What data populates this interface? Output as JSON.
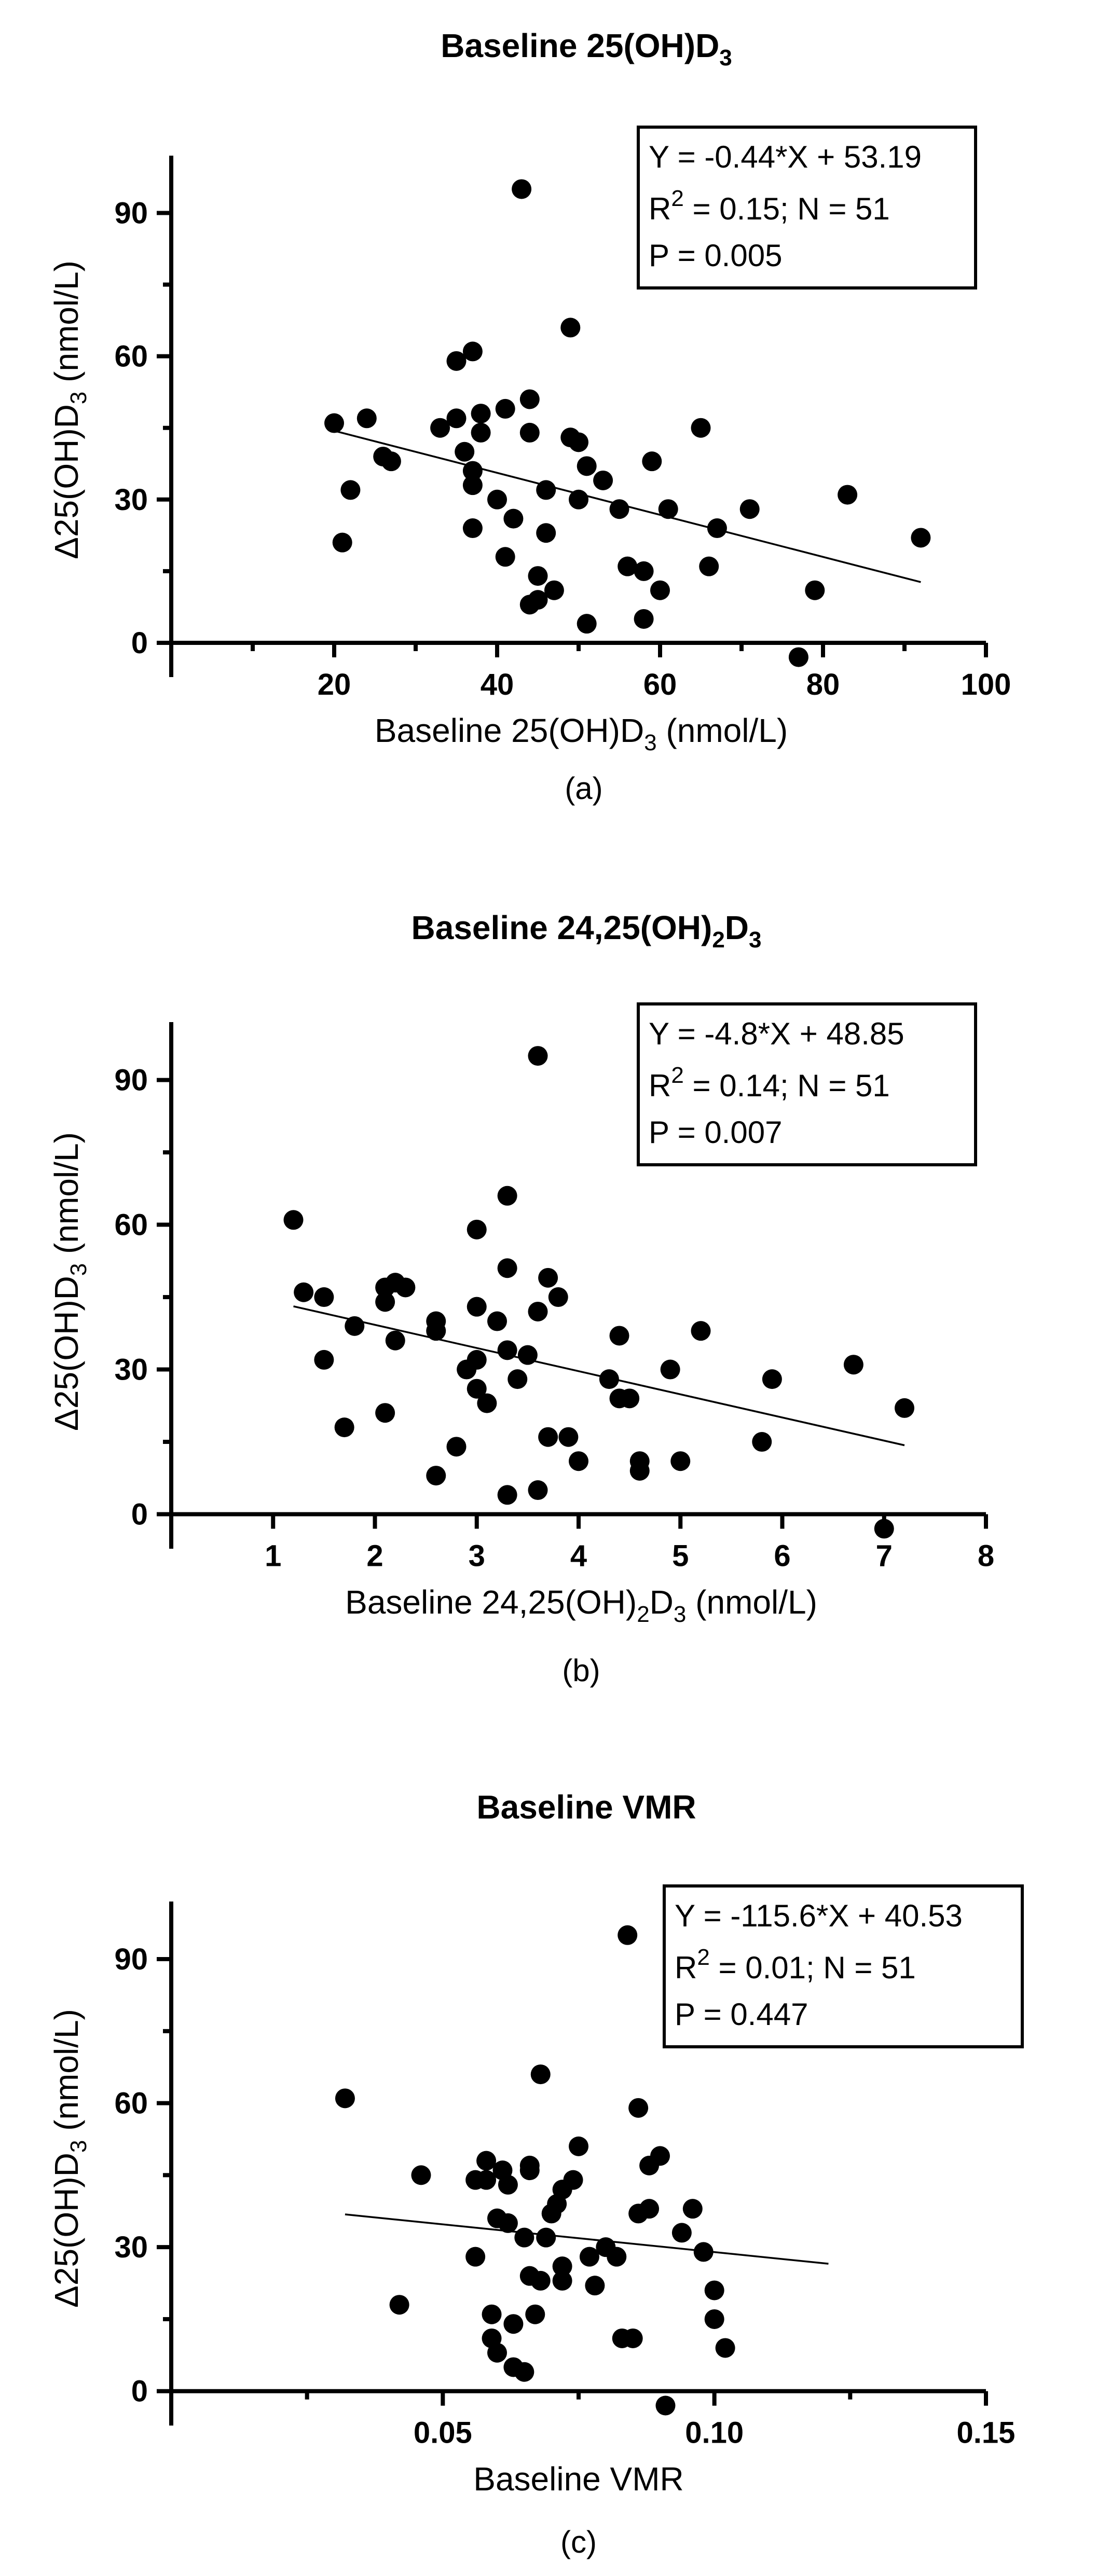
{
  "chart_data": [
    {
      "type": "scatter",
      "panel_label": "(a)",
      "title": "Baseline 25(OH)D",
      "title_sub": "3",
      "xlabel": {
        "pre": "Baseline 25(OH)D",
        "sub": "3",
        "post": " (nmol/L)"
      },
      "ylabel": {
        "pre": "Δ25(OH)D",
        "sub": "3",
        "post": "  (nmol/L)"
      },
      "xlim": [
        0,
        100
      ],
      "ylim": [
        -5,
        102
      ],
      "xticks": [
        20,
        40,
        60,
        80,
        100
      ],
      "xminor": [
        10,
        30,
        50,
        70,
        90
      ],
      "xtick_labels": [
        "20",
        "40",
        "60",
        "80",
        "100"
      ],
      "yticks": [
        0,
        30,
        60,
        90
      ],
      "yminor": [
        15,
        45,
        75
      ],
      "ytick_labels": [
        "0",
        "30",
        "60",
        "90"
      ],
      "stats": {
        "equation": "Y = -0.44*X + 53.19",
        "r2_label": "R",
        "r2_sup": "2",
        "r2_rest": " = 0.15; N = 51",
        "p": "P = 0.005"
      },
      "fit": {
        "slope": -0.44,
        "intercept": 53.19,
        "x_range": [
          20,
          92
        ]
      },
      "points": [
        [
          20,
          46
        ],
        [
          21,
          21
        ],
        [
          22,
          32
        ],
        [
          24,
          47
        ],
        [
          26,
          39
        ],
        [
          27,
          38
        ],
        [
          33,
          45
        ],
        [
          35,
          59
        ],
        [
          35,
          47
        ],
        [
          36,
          40
        ],
        [
          37,
          61
        ],
        [
          37,
          36
        ],
        [
          37,
          33
        ],
        [
          37,
          24
        ],
        [
          38,
          48
        ],
        [
          38,
          44
        ],
        [
          41,
          49
        ],
        [
          41,
          18
        ],
        [
          42,
          26
        ],
        [
          43,
          95
        ],
        [
          44,
          51
        ],
        [
          44,
          44
        ],
        [
          44,
          8
        ],
        [
          45,
          14
        ],
        [
          45,
          9
        ],
        [
          46,
          32
        ],
        [
          46,
          23
        ],
        [
          47,
          11
        ],
        [
          49,
          66
        ],
        [
          49,
          43
        ],
        [
          50,
          42
        ],
        [
          50,
          30
        ],
        [
          51,
          37
        ],
        [
          51,
          4
        ],
        [
          53,
          34
        ],
        [
          55,
          28
        ],
        [
          56,
          16
        ],
        [
          58,
          5
        ],
        [
          58,
          15
        ],
        [
          59,
          38
        ],
        [
          60,
          11
        ],
        [
          61,
          28
        ],
        [
          65,
          45
        ],
        [
          66,
          16
        ],
        [
          67,
          24
        ],
        [
          71,
          28
        ],
        [
          77,
          -3
        ],
        [
          79,
          11
        ],
        [
          83,
          31
        ],
        [
          92,
          22
        ],
        [
          40,
          30
        ]
      ]
    },
    {
      "type": "scatter",
      "panel_label": "(b)",
      "title": "Baseline 24,25(OH)",
      "title_sub1": "2",
      "title_mid": "D",
      "title_sub2": "3",
      "xlabel": {
        "pre": "Baseline 24,25(OH)",
        "sub1": "2",
        "mid": "D",
        "sub2": "3",
        "post": " (nmol/L)"
      },
      "ylabel": {
        "pre": "Δ25(OH)D",
        "sub": "3",
        "post": " (nmol/L)"
      },
      "xlim": [
        0,
        8
      ],
      "ylim": [
        -5,
        102
      ],
      "xticks": [
        1,
        2,
        3,
        4,
        5,
        6,
        7,
        8
      ],
      "xminor": [],
      "xtick_labels": [
        "1",
        "2",
        "3",
        "4",
        "5",
        "6",
        "7",
        "8"
      ],
      "yticks": [
        0,
        30,
        60,
        90
      ],
      "yminor": [
        15,
        45,
        75
      ],
      "ytick_labels": [
        "0",
        "30",
        "60",
        "90"
      ],
      "stats": {
        "equation": "Y = -4.8*X + 48.85",
        "r2_label": "R",
        "r2_sup": "2",
        "r2_rest": " = 0.14; N = 51",
        "p": "P = 0.007"
      },
      "fit": {
        "slope": -4.8,
        "intercept": 48.85,
        "x_range": [
          1.2,
          7.2
        ]
      },
      "points": [
        [
          1.2,
          61
        ],
        [
          1.3,
          46
        ],
        [
          1.5,
          45
        ],
        [
          1.5,
          32
        ],
        [
          1.7,
          18
        ],
        [
          1.8,
          39
        ],
        [
          2.1,
          47
        ],
        [
          2.1,
          44
        ],
        [
          2.1,
          21
        ],
        [
          2.2,
          48
        ],
        [
          2.2,
          36
        ],
        [
          2.3,
          47
        ],
        [
          2.6,
          40
        ],
        [
          2.6,
          38
        ],
        [
          2.6,
          8
        ],
        [
          2.8,
          14
        ],
        [
          3.0,
          59
        ],
        [
          3.0,
          43
        ],
        [
          3.0,
          32
        ],
        [
          3.0,
          26
        ],
        [
          3.1,
          23
        ],
        [
          3.3,
          66
        ],
        [
          3.3,
          51
        ],
        [
          3.3,
          34
        ],
        [
          3.3,
          4
        ],
        [
          3.4,
          28
        ],
        [
          3.5,
          33
        ],
        [
          3.6,
          95
        ],
        [
          3.6,
          42
        ],
        [
          3.6,
          5
        ],
        [
          3.7,
          49
        ],
        [
          3.7,
          16
        ],
        [
          3.8,
          45
        ],
        [
          3.9,
          16
        ],
        [
          4.0,
          11
        ],
        [
          4.3,
          28
        ],
        [
          4.4,
          37
        ],
        [
          4.4,
          24
        ],
        [
          4.5,
          24
        ],
        [
          4.6,
          11
        ],
        [
          4.6,
          9
        ],
        [
          4.9,
          30
        ],
        [
          5.0,
          11
        ],
        [
          5.2,
          38
        ],
        [
          5.8,
          15
        ],
        [
          5.9,
          28
        ],
        [
          6.7,
          31
        ],
        [
          7.0,
          -3
        ],
        [
          7.2,
          22
        ],
        [
          3.2,
          40
        ],
        [
          2.9,
          30
        ]
      ]
    },
    {
      "type": "scatter",
      "panel_label": "(c)",
      "title": "Baseline VMR",
      "xlabel": {
        "pre": "Baseline VMR"
      },
      "ylabel": {
        "pre": "Δ25(OH)D",
        "sub": "3",
        "post": " (nmol/L)"
      },
      "xlim": [
        0,
        0.15
      ],
      "ylim": [
        -5,
        102
      ],
      "xticks": [
        0.05,
        0.1,
        0.15
      ],
      "xminor": [
        0.025,
        0.075,
        0.125
      ],
      "xtick_labels": [
        "0.05",
        "0.10",
        "0.15"
      ],
      "yticks": [
        0,
        30,
        60,
        90
      ],
      "yminor": [
        15,
        45,
        75
      ],
      "ytick_labels": [
        "0",
        "30",
        "60",
        "90"
      ],
      "stats": {
        "equation": "Y = -115.6*X + 40.53",
        "r2_label": "R",
        "r2_sup": "2",
        "r2_rest": " = 0.01; N = 51",
        "p": "P = 0.447"
      },
      "fit": {
        "slope": -115.6,
        "intercept": 40.53,
        "x_range": [
          0.032,
          0.121
        ]
      },
      "points": [
        [
          0.032,
          61
        ],
        [
          0.042,
          18
        ],
        [
          0.046,
          45
        ],
        [
          0.056,
          44
        ],
        [
          0.056,
          28
        ],
        [
          0.058,
          48
        ],
        [
          0.058,
          44
        ],
        [
          0.059,
          11
        ],
        [
          0.059,
          16
        ],
        [
          0.06,
          36
        ],
        [
          0.06,
          8
        ],
        [
          0.061,
          46
        ],
        [
          0.062,
          43
        ],
        [
          0.062,
          35
        ],
        [
          0.063,
          14
        ],
        [
          0.063,
          5
        ],
        [
          0.065,
          32
        ],
        [
          0.065,
          4
        ],
        [
          0.066,
          47
        ],
        [
          0.066,
          46
        ],
        [
          0.066,
          24
        ],
        [
          0.067,
          16
        ],
        [
          0.068,
          66
        ],
        [
          0.068,
          23
        ],
        [
          0.069,
          32
        ],
        [
          0.07,
          37
        ],
        [
          0.071,
          39
        ],
        [
          0.072,
          42
        ],
        [
          0.072,
          26
        ],
        [
          0.072,
          23
        ],
        [
          0.074,
          44
        ],
        [
          0.075,
          51
        ],
        [
          0.077,
          28
        ],
        [
          0.078,
          22
        ],
        [
          0.08,
          30
        ],
        [
          0.082,
          28
        ],
        [
          0.083,
          11
        ],
        [
          0.084,
          95
        ],
        [
          0.085,
          11
        ],
        [
          0.086,
          59
        ],
        [
          0.086,
          37
        ],
        [
          0.088,
          47
        ],
        [
          0.088,
          38
        ],
        [
          0.09,
          49
        ],
        [
          0.091,
          -3
        ],
        [
          0.094,
          33
        ],
        [
          0.096,
          38
        ],
        [
          0.098,
          29
        ],
        [
          0.1,
          21
        ],
        [
          0.1,
          15
        ],
        [
          0.102,
          9
        ]
      ]
    }
  ]
}
